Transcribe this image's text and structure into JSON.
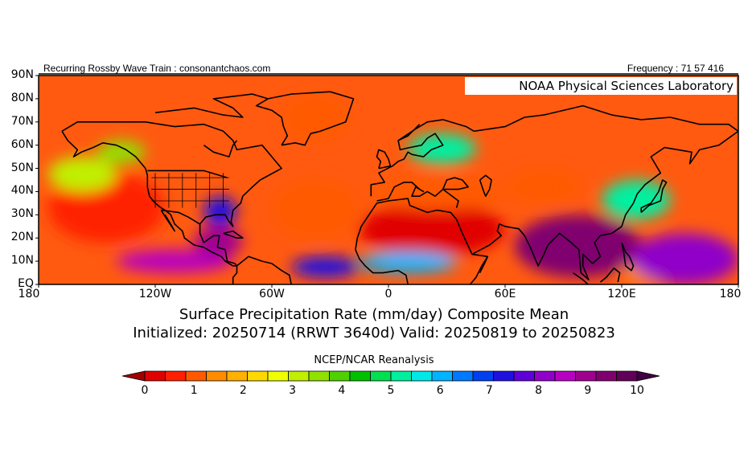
{
  "header": {
    "left_text": "Recurring Rossby Wave Train : consonantchaos.com",
    "right_text": "Frequency : 71 57 416",
    "org_label": "NOAA Physical Sciences Laboratory"
  },
  "map": {
    "lat_labels": [
      "90N",
      "80N",
      "70N",
      "60N",
      "50N",
      "40N",
      "30N",
      "20N",
      "10N",
      "EQ"
    ],
    "lon_labels": [
      "180",
      "120W",
      "60W",
      "0",
      "60E",
      "120E",
      "180"
    ],
    "lat_range": [
      0,
      90
    ],
    "lon_range": [
      -180,
      180
    ],
    "field": "Surface Precipitation Rate (mm/day) composite mean",
    "coastlines": "black outlines",
    "regions": [
      {
        "name": "north-pacific-dry",
        "lon": [
          -175,
          -115
        ],
        "lat": [
          18,
          48
        ],
        "value": 0.8
      },
      {
        "name": "sahara-arabia-dry",
        "lon": [
          -15,
          60
        ],
        "lat": [
          12,
          35
        ],
        "value": 0.2
      },
      {
        "name": "north-atlantic-dry",
        "lon": [
          -60,
          -15
        ],
        "lat": [
          20,
          45
        ],
        "value": 1.2
      },
      {
        "name": "mediterranean-dry",
        "lon": [
          -10,
          60
        ],
        "lat": [
          32,
          46
        ],
        "value": 1.0
      },
      {
        "name": "greenland-dry",
        "lon": [
          -55,
          -20
        ],
        "lat": [
          62,
          82
        ],
        "value": 1.3
      },
      {
        "name": "central-asia-dry",
        "lon": [
          60,
          100
        ],
        "lat": [
          35,
          50
        ],
        "value": 1.2
      },
      {
        "name": "australia-north-dry",
        "lon": [
          120,
          150
        ],
        "lat": [
          0,
          10
        ],
        "value": 1.5
      },
      {
        "name": "asian-monsoon-wet",
        "lon": [
          65,
          130
        ],
        "lat": [
          3,
          30
        ],
        "value": 9.0
      },
      {
        "name": "west-pacific-wet",
        "lon": [
          125,
          180
        ],
        "lat": [
          0,
          22
        ],
        "value": 8.0
      },
      {
        "name": "east-pacific-itcz-wet",
        "lon": [
          -140,
          -80
        ],
        "lat": [
          5,
          15
        ],
        "value": 8.5
      },
      {
        "name": "central-america-wet",
        "lon": [
          -100,
          -75
        ],
        "lat": [
          12,
          25
        ],
        "value": 8.8
      },
      {
        "name": "gulf-southeast-us-wet",
        "lon": [
          -95,
          -78
        ],
        "lat": [
          25,
          38
        ],
        "value": 7.0
      },
      {
        "name": "atlantic-itcz-wet",
        "lon": [
          -50,
          -15
        ],
        "lat": [
          3,
          12
        ],
        "value": 7.0
      },
      {
        "name": "west-africa-sahel-wet",
        "lon": [
          -15,
          35
        ],
        "lat": [
          5,
          14
        ],
        "value": 6.0
      },
      {
        "name": "northern-europe-wet",
        "lon": [
          10,
          45
        ],
        "lat": [
          52,
          65
        ],
        "value": 5.0
      },
      {
        "name": "east-asia-wet",
        "lon": [
          110,
          145
        ],
        "lat": [
          28,
          45
        ],
        "value": 5.0
      },
      {
        "name": "north-pacific-storm-wet",
        "lon": [
          -175,
          -140
        ],
        "lat": [
          40,
          55
        ],
        "value": 3.0
      },
      {
        "name": "gulf-of-alaska-wet",
        "lon": [
          -150,
          -125
        ],
        "lat": [
          52,
          62
        ],
        "value": 3.5
      }
    ]
  },
  "title": {
    "line1": "Surface Precipitation Rate (mm/day) Composite Mean",
    "line2": "Initialized: 20250714 (RRWT 3640d) Valid: 20250819 to 20250823"
  },
  "colorbar": {
    "label": "NCEP/NCAR Reanalysis",
    "tick_labels": [
      "0",
      "1",
      "2",
      "3",
      "4",
      "5",
      "6",
      "7",
      "8",
      "9",
      "10"
    ],
    "colors": [
      "#a00000",
      "#e00000",
      "#ff2000",
      "#ff5a00",
      "#ff8c00",
      "#ffb000",
      "#ffd800",
      "#f0ff00",
      "#c0f000",
      "#90e000",
      "#50d000",
      "#00c000",
      "#00e050",
      "#00f0a0",
      "#00e8e8",
      "#00b4ff",
      "#0078ff",
      "#0040f0",
      "#2010e0",
      "#6000d8",
      "#9000c8",
      "#b800c0",
      "#a00090",
      "#800070",
      "#600058",
      "#400040"
    ]
  }
}
